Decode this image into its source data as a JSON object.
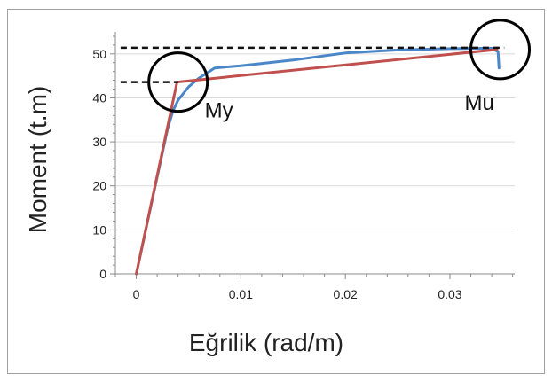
{
  "chart_data": {
    "type": "line",
    "xlabel": "Eğrilik (rad/m)",
    "ylabel": "Moment (t.m)",
    "xlim": [
      -0.002,
      0.0362
    ],
    "ylim": [
      0,
      55
    ],
    "x_ticks": [
      "0",
      "0.01",
      "0.02",
      "0.03"
    ],
    "x_tick_values": [
      0,
      0.01,
      0.02,
      0.03
    ],
    "y_ticks": [
      "0",
      "10",
      "20",
      "30",
      "40",
      "50"
    ],
    "y_tick_values": [
      0,
      10,
      20,
      30,
      40,
      50
    ],
    "grid": "horizontal",
    "series": [
      {
        "color": "#4a86c8",
        "points": [
          [
            0,
            0
          ],
          [
            0.001,
            11
          ],
          [
            0.002,
            22
          ],
          [
            0.003,
            33
          ],
          [
            0.0035,
            37
          ],
          [
            0.004,
            39.5
          ],
          [
            0.005,
            42.5
          ],
          [
            0.006,
            44.5
          ],
          [
            0.0075,
            46.8
          ],
          [
            0.01,
            47.3
          ],
          [
            0.015,
            48.6
          ],
          [
            0.02,
            50.2
          ],
          [
            0.025,
            50.9
          ],
          [
            0.03,
            51.2
          ],
          [
            0.034,
            51.3
          ],
          [
            0.0346,
            50.5
          ],
          [
            0.0347,
            46.8
          ]
        ]
      },
      {
        "color": "#c0504d",
        "points": [
          [
            0,
            0
          ],
          [
            0.0039,
            43.6
          ],
          [
            0.0345,
            51
          ]
        ]
      }
    ],
    "reference_lines": [
      {
        "y": 43.6,
        "x_from": -0.0015,
        "x_to": 0.004
      },
      {
        "y": 51.4,
        "x_from": -0.0015,
        "x_to": 0.0352
      }
    ],
    "annotations": [
      {
        "label": "My",
        "x": 0.004,
        "y": 43.6
      },
      {
        "label": "Mu",
        "x": 0.0348,
        "y": 51
      }
    ]
  }
}
